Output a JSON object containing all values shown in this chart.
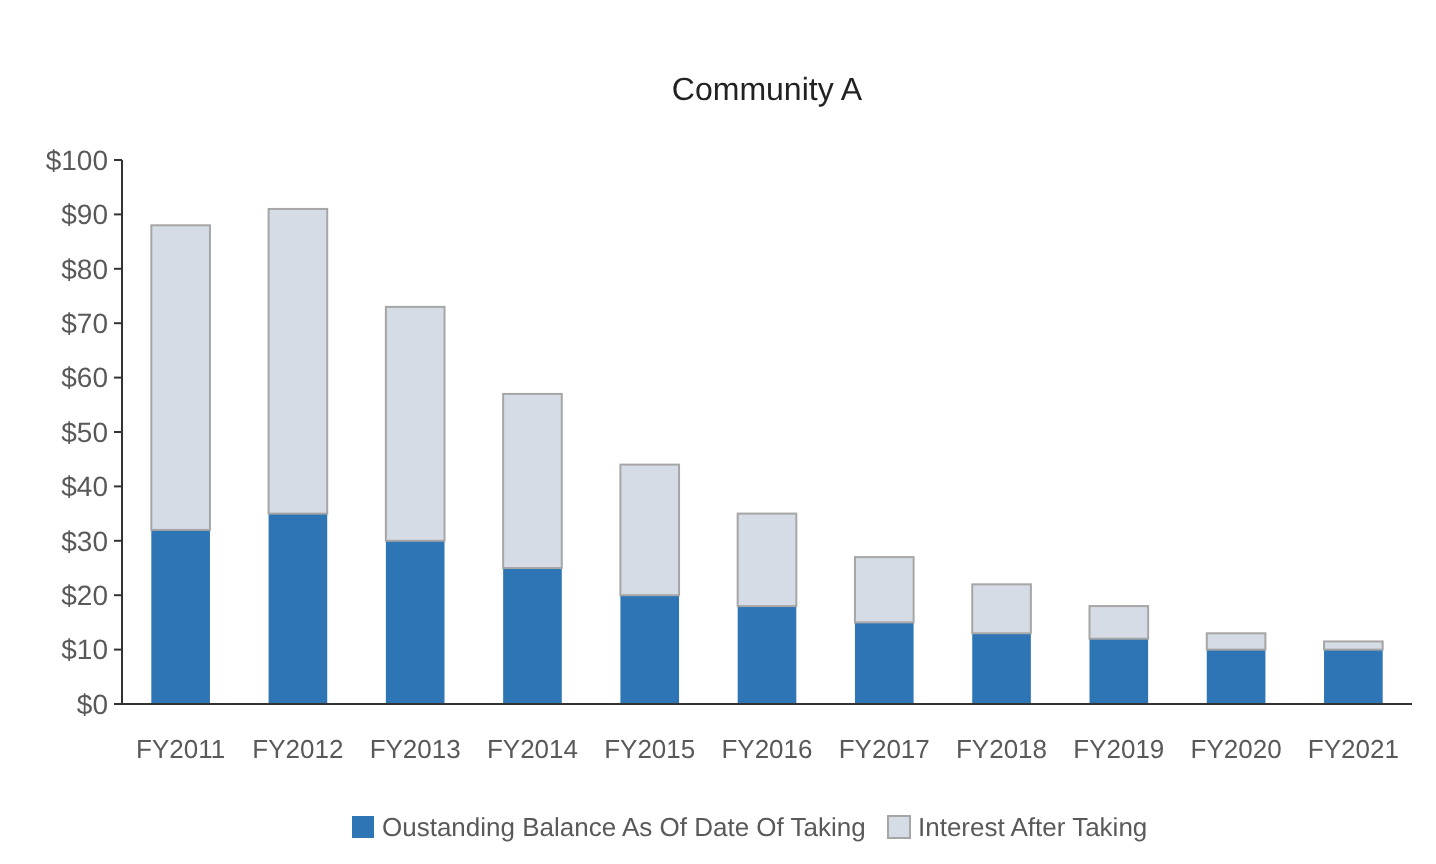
{
  "chart_data": {
    "type": "bar",
    "title": "Community A",
    "stacked": true,
    "legend": "bottom",
    "grid": false,
    "categories": [
      "FY2011",
      "FY2012",
      "FY2013",
      "FY2014",
      "FY2015",
      "FY2016",
      "FY2017",
      "FY2018",
      "FY2019",
      "FY2020",
      "FY2021"
    ],
    "series": [
      {
        "name": "Oustanding Balance As Of Date Of Taking",
        "color": "#2e75b6",
        "values": [
          32,
          35,
          30,
          25,
          20,
          18,
          15,
          13,
          12,
          10,
          10
        ]
      },
      {
        "name": "Interest After Taking",
        "color": "#d6dce5",
        "values": [
          56,
          56,
          43,
          32,
          24,
          17,
          12,
          9,
          6,
          3,
          1.5
        ]
      }
    ],
    "ylim": [
      0,
      100
    ],
    "yticks": [
      {
        "value": 0,
        "label": "$0"
      },
      {
        "value": 10,
        "label": "$10"
      },
      {
        "value": 20,
        "label": "$20"
      },
      {
        "value": 30,
        "label": "$30"
      },
      {
        "value": 40,
        "label": "$40"
      },
      {
        "value": 50,
        "label": "$50"
      },
      {
        "value": 60,
        "label": "$60"
      },
      {
        "value": 70,
        "label": "$70"
      },
      {
        "value": 80,
        "label": "$80"
      },
      {
        "value": 90,
        "label": "$90"
      },
      {
        "value": 100,
        "label": "$100"
      }
    ]
  }
}
